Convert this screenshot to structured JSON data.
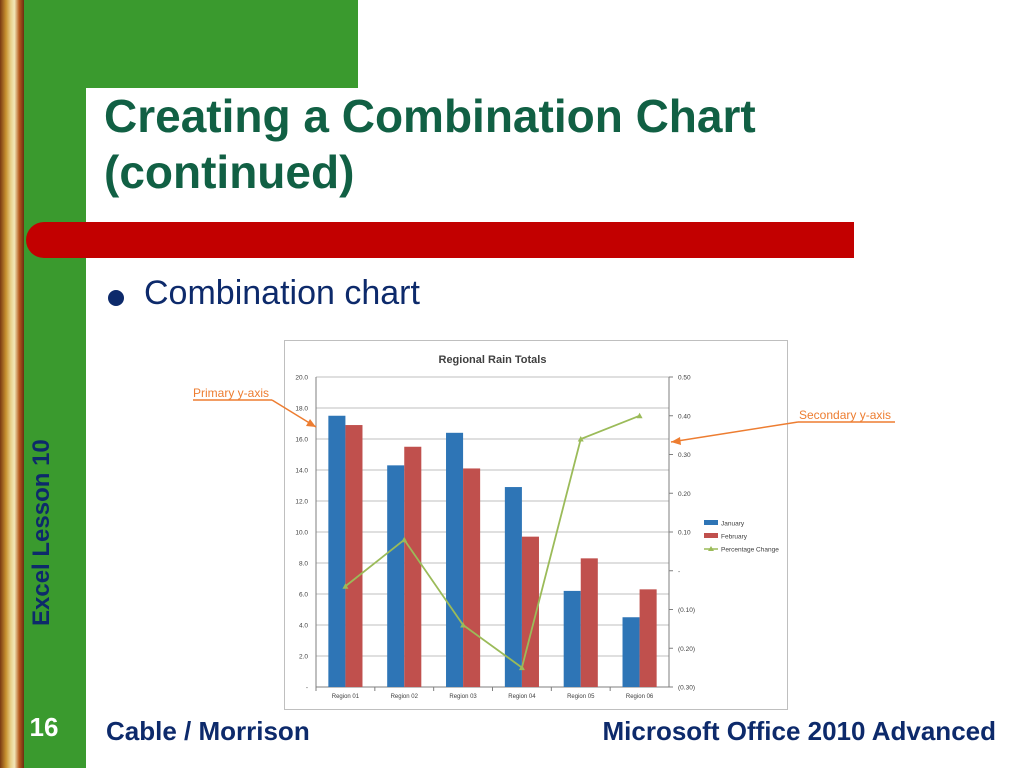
{
  "slide": {
    "title": "Creating a Combination Chart (continued)",
    "bullet": "Combination chart",
    "side_label": "Excel Lesson 10",
    "page_number": "16",
    "footer_left": "Cable / Morrison",
    "footer_right": "Microsoft Office 2010 Advanced"
  },
  "callouts": {
    "primary": "Primary y-axis",
    "secondary": "Secondary y-axis"
  },
  "colors": {
    "green": "#3a9a2e",
    "red_bar": "#c20000",
    "title": "#116044",
    "text_navy": "#0d2a6b",
    "january": "#2e75b6",
    "february": "#c0504d",
    "pct_change": "#9bbb59",
    "callout": "#ed7d31"
  },
  "chart_data": {
    "type": "bar",
    "title": "Regional Rain Totals",
    "categories": [
      "Region 01",
      "Region 02",
      "Region 03",
      "Region 04",
      "Region 05",
      "Region 06"
    ],
    "series": [
      {
        "name": "January",
        "values": [
          17.5,
          14.3,
          16.4,
          12.9,
          6.2,
          4.5
        ],
        "type": "bar",
        "axis": "primary"
      },
      {
        "name": "February",
        "values": [
          16.9,
          15.5,
          14.1,
          9.7,
          8.3,
          6.3
        ],
        "type": "bar",
        "axis": "primary"
      },
      {
        "name": "Percentage Change",
        "values": [
          -0.04,
          0.08,
          -0.14,
          -0.25,
          0.34,
          0.4
        ],
        "type": "line",
        "axis": "secondary"
      }
    ],
    "ylim": [
      0,
      20
    ],
    "y2lim": [
      -0.3,
      0.5
    ],
    "yticks": [
      "-",
      "2.0",
      "4.0",
      "6.0",
      "8.0",
      "10.0",
      "12.0",
      "14.0",
      "16.0",
      "18.0",
      "20.0"
    ],
    "y2ticks": [
      "(0.30)",
      "(0.20)",
      "(0.10)",
      "-",
      "0.10",
      "0.20",
      "0.30",
      "0.40",
      "0.50"
    ],
    "grid": true,
    "legend": "right"
  }
}
